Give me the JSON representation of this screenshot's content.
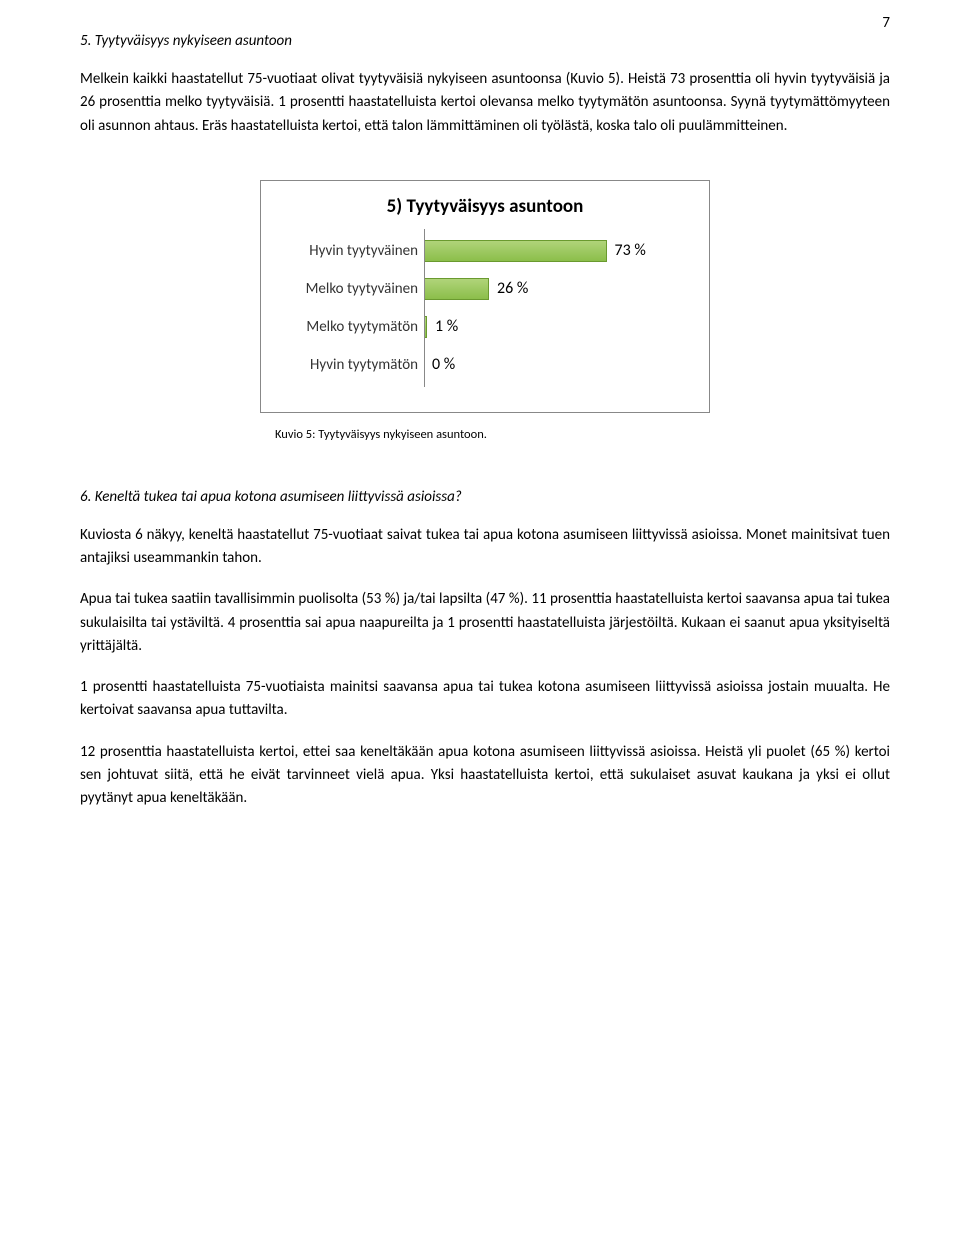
{
  "page_number": "7",
  "section5": {
    "heading": "5. Tyytyväisyys nykyiseen asuntoon",
    "para1": "Melkein kaikki haastatellut 75-vuotiaat olivat tyytyväisiä nykyiseen asuntoonsa (Kuvio 5). Heistä 73 prosenttia oli hyvin tyytyväisiä ja 26 prosenttia melko tyytyväisiä. 1 prosentti haastatelluista kertoi olevansa melko tyytymätön asuntoonsa. Syynä tyytymättömyyteen oli asunnon ahtaus. Eräs haastatelluista kertoi, että talon lämmittäminen oli työlästä, koska talo oli puulämmitteinen."
  },
  "chart": {
    "title": "5) Tyytyväisyys asuntoon",
    "categories": [
      "Hyvin tyytyväinen",
      "Melko tyytyväinen",
      "Melko tyytymätön",
      "Hyvin tyytymätön"
    ],
    "values": [
      73,
      26,
      1,
      0
    ],
    "value_labels": [
      "73 %",
      "26 %",
      "1 %",
      "0 %"
    ],
    "bar_color_top": "#b0d47a",
    "bar_color_bottom": "#8bbe4a",
    "bar_border": "#6a9a2f",
    "max": 100,
    "caption": "Kuvio 5: Tyytyväisyys nykyiseen asuntoon."
  },
  "section6": {
    "heading": "6. Keneltä tukea tai apua kotona asumiseen liittyvissä asioissa?",
    "para1": "Kuviosta 6 näkyy, keneltä haastatellut 75-vuotiaat saivat tukea tai apua kotona asumiseen liittyvissä asioissa. Monet mainitsivat tuen antajiksi useammankin tahon.",
    "para2": "Apua tai tukea saatiin tavallisimmin puolisolta (53 %) ja/tai lapsilta (47 %). 11 prosenttia haastatelluista kertoi saavansa apua tai tukea sukulaisilta tai ystäviltä. 4 prosenttia sai apua naapureilta ja 1 prosentti haastatelluista järjestöiltä. Kukaan ei saanut apua yksityiseltä yrittäjältä.",
    "para3": "1 prosentti haastatelluista 75-vuotiaista mainitsi saavansa apua tai tukea kotona asumiseen liittyvissä asioissa jostain muualta. He kertoivat saavansa apua tuttavilta.",
    "para4": "12 prosenttia haastatelluista kertoi, ettei saa keneltäkään apua kotona asumiseen liittyvissä asioissa. Heistä yli puolet (65 %) kertoi sen johtuvat siitä, että he eivät tarvinneet vielä apua. Yksi haastatelluista kertoi, että sukulaiset asuvat kaukana ja yksi ei ollut pyytänyt apua keneltäkään."
  }
}
